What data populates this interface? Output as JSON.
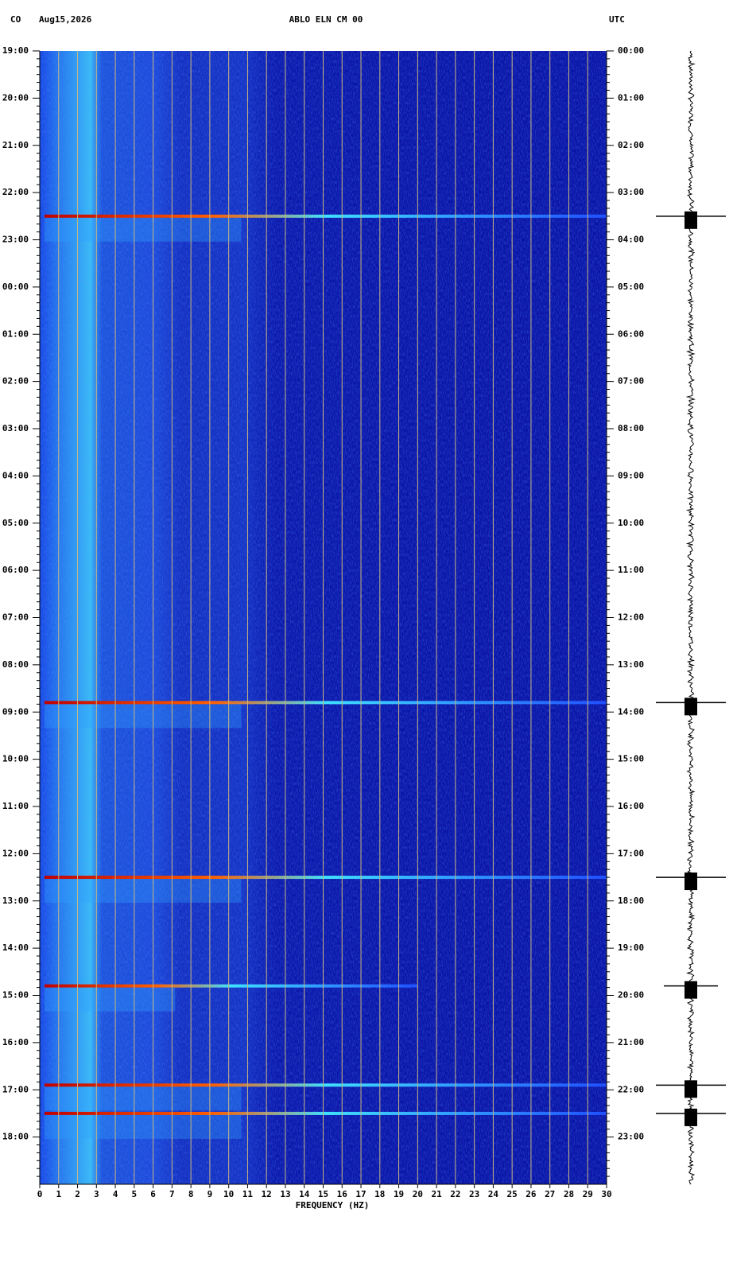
{
  "chart_data": {
    "type": "spectrogram",
    "network": "CO",
    "date": "Aug15,2026",
    "title": "ABLO ELN CM 00",
    "timezone": "UTC",
    "x_label": "FREQUENCY (HZ)",
    "xlim": [
      0,
      30
    ],
    "xticks": [
      0,
      1,
      2,
      3,
      4,
      5,
      6,
      7,
      8,
      9,
      10,
      11,
      12,
      13,
      14,
      15,
      16,
      17,
      18,
      19,
      20,
      21,
      22,
      23,
      24,
      25,
      26,
      27,
      28,
      29,
      30
    ],
    "ylim": [
      0,
      24
    ],
    "yticks": [
      {
        "value": 0,
        "label": "19:00"
      },
      {
        "value": 1,
        "label": "20:00"
      },
      {
        "value": 2,
        "label": "21:00"
      },
      {
        "value": 3,
        "label": "22:00"
      },
      {
        "value": 4,
        "label": "23:00"
      },
      {
        "value": 5,
        "label": "00:00"
      },
      {
        "value": 6,
        "label": "01:00"
      },
      {
        "value": 7,
        "label": "02:00"
      },
      {
        "value": 8,
        "label": "03:00"
      },
      {
        "value": 9,
        "label": "04:00"
      },
      {
        "value": 10,
        "label": "05:00"
      },
      {
        "value": 11,
        "label": "06:00"
      },
      {
        "value": 12,
        "label": "07:00"
      },
      {
        "value": 13,
        "label": "08:00"
      },
      {
        "value": 14,
        "label": "09:00"
      },
      {
        "value": 15,
        "label": "10:00"
      },
      {
        "value": 16,
        "label": "11:00"
      },
      {
        "value": 17,
        "label": "12:00"
      },
      {
        "value": 18,
        "label": "13:00"
      },
      {
        "value": 19,
        "label": "14:00"
      },
      {
        "value": 20,
        "label": "15:00"
      },
      {
        "value": 21,
        "label": "16:00"
      },
      {
        "value": 22,
        "label": "17:00"
      },
      {
        "value": 23,
        "label": "18:00"
      }
    ],
    "y2ticks": [
      {
        "value": 0,
        "label": "00:00"
      },
      {
        "value": 1,
        "label": "01:00"
      },
      {
        "value": 2,
        "label": "02:00"
      },
      {
        "value": 3,
        "label": "03:00"
      },
      {
        "value": 4,
        "label": "04:00"
      },
      {
        "value": 5,
        "label": "05:00"
      },
      {
        "value": 6,
        "label": "06:00"
      },
      {
        "value": 7,
        "label": "07:00"
      },
      {
        "value": 8,
        "label": "08:00"
      },
      {
        "value": 9,
        "label": "09:00"
      },
      {
        "value": 10,
        "label": "10:00"
      },
      {
        "value": 11,
        "label": "11:00"
      },
      {
        "value": 12,
        "label": "12:00"
      },
      {
        "value": 13,
        "label": "13:00"
      },
      {
        "value": 14,
        "label": "14:00"
      },
      {
        "value": 15,
        "label": "15:00"
      },
      {
        "value": 16,
        "label": "16:00"
      },
      {
        "value": 17,
        "label": "17:00"
      },
      {
        "value": 18,
        "label": "18:00"
      },
      {
        "value": 19,
        "label": "19:00"
      },
      {
        "value": 20,
        "label": "20:00"
      },
      {
        "value": 21,
        "label": "21:00"
      },
      {
        "value": 22,
        "label": "22:00"
      },
      {
        "value": 23,
        "label": "23:00"
      }
    ],
    "grid": true,
    "events": {
      "time": [
        3.5,
        13.8,
        17.5,
        19.8,
        21.9,
        22.5
      ],
      "max_freq": [
        30,
        30,
        30,
        20,
        30,
        30
      ]
    }
  }
}
